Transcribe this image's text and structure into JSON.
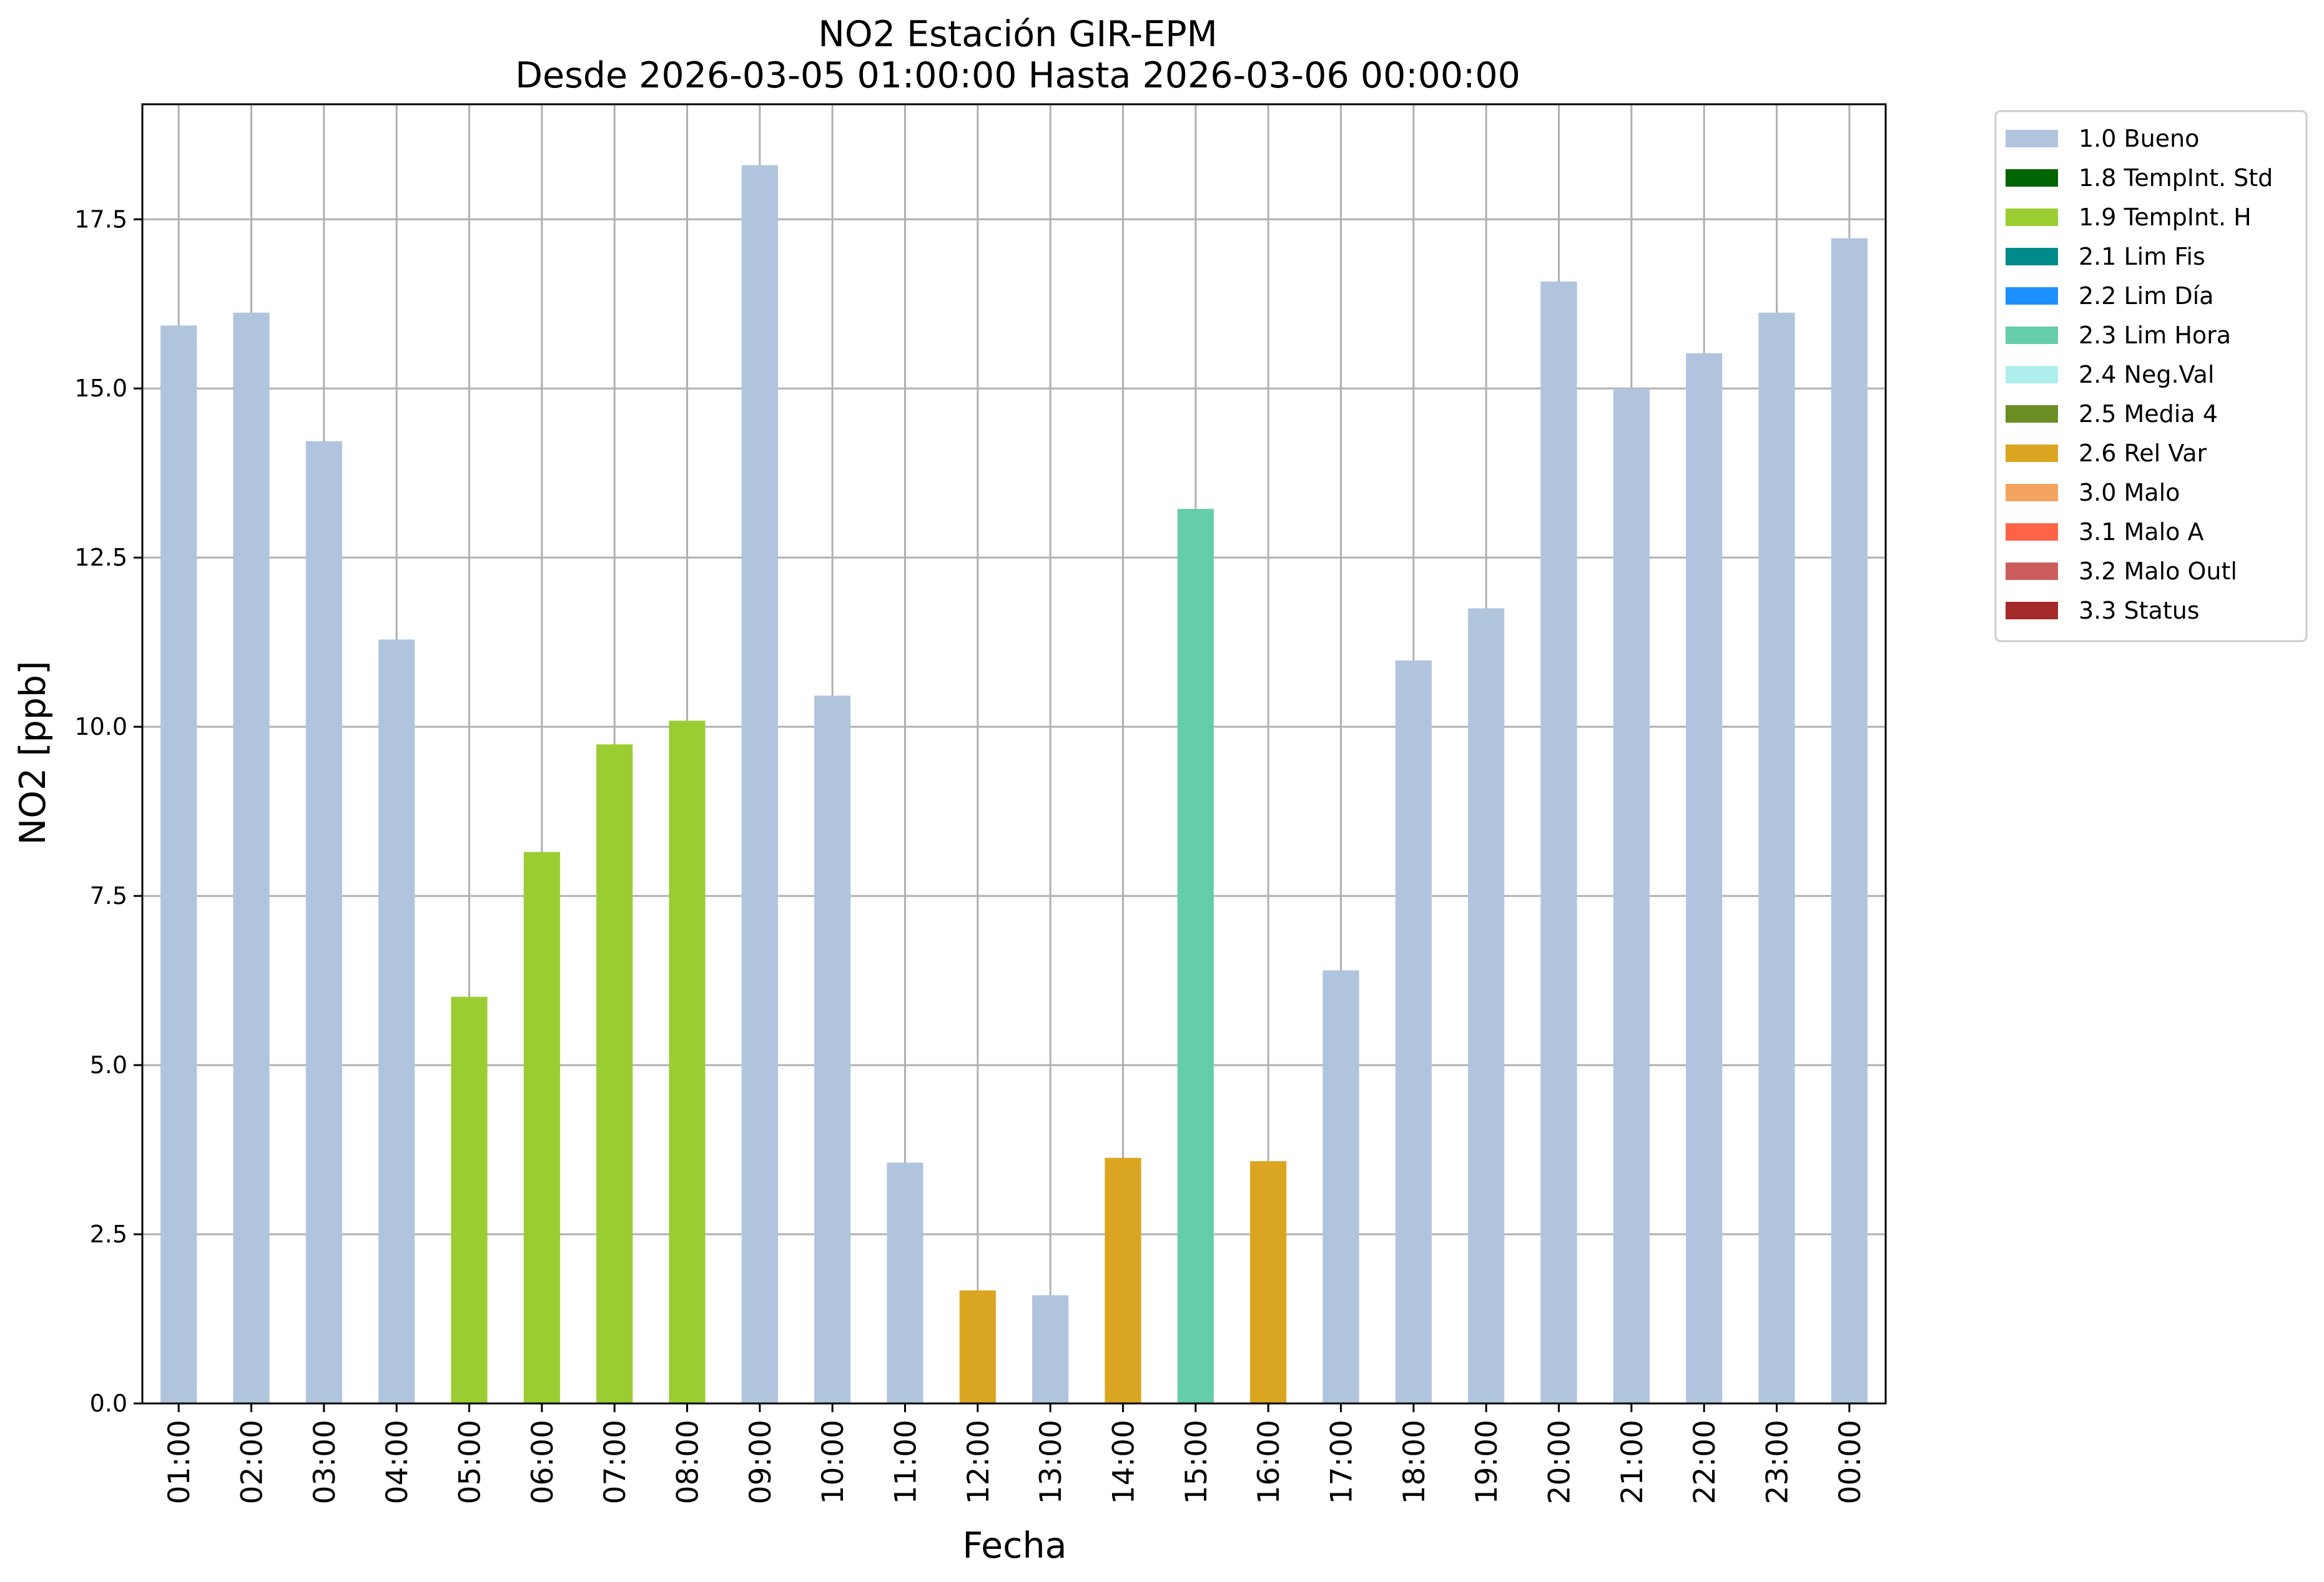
{
  "chart_data": {
    "type": "bar",
    "title": "NO2 Estación GIR-EPM",
    "subtitle": "Desde 2026-03-05 01:00:00 Hasta 2026-03-06 00:00:00",
    "xlabel": "Fecha",
    "ylabel": "NO2 [ppb]",
    "ylim": [
      0,
      19.2
    ],
    "yticks": [
      0,
      2.5,
      5,
      7.5,
      10,
      12.5,
      15,
      17.5
    ],
    "ytick_labels": [
      "0.0",
      "2.5",
      "5.0",
      "7.5",
      "10.0",
      "12.5",
      "15.0",
      "17.5"
    ],
    "grid": true,
    "legend_position": "outside-top-right",
    "categories": [
      "01:00",
      "02:00",
      "03:00",
      "04:00",
      "05:00",
      "06:00",
      "07:00",
      "08:00",
      "09:00",
      "10:00",
      "11:00",
      "12:00",
      "13:00",
      "14:00",
      "15:00",
      "16:00",
      "17:00",
      "18:00",
      "19:00",
      "20:00",
      "21:00",
      "22:00",
      "23:00",
      "00:00"
    ],
    "values": [
      15.93,
      16.12,
      14.22,
      11.29,
      6.01,
      8.15,
      9.74,
      10.09,
      18.3,
      10.46,
      3.56,
      1.67,
      1.6,
      3.63,
      13.22,
      3.58,
      6.4,
      10.98,
      11.75,
      16.58,
      15.0,
      15.52,
      16.12,
      17.22
    ],
    "bar_flags": [
      "1.0 Bueno",
      "1.0 Bueno",
      "1.0 Bueno",
      "1.0 Bueno",
      "1.9 TempInt. H",
      "1.9 TempInt. H",
      "1.9 TempInt. H",
      "1.9 TempInt. H",
      "1.0 Bueno",
      "1.0 Bueno",
      "1.0 Bueno",
      "2.6 Rel Var",
      "1.0 Bueno",
      "2.6 Rel Var",
      "2.3 Lim Hora",
      "2.6 Rel Var",
      "1.0 Bueno",
      "1.0 Bueno",
      "1.0 Bueno",
      "1.0 Bueno",
      "1.0 Bueno",
      "1.0 Bueno",
      "1.0 Bueno",
      "1.0 Bueno"
    ],
    "legend": [
      {
        "label": "1.0 Bueno",
        "color": "#b0c4de"
      },
      {
        "label": "1.8 TempInt. Std",
        "color": "#006400"
      },
      {
        "label": "1.9 TempInt. H",
        "color": "#9acd32"
      },
      {
        "label": "2.1 Lim Fis",
        "color": "#008b8b"
      },
      {
        "label": "2.2 Lim Día",
        "color": "#1e90ff"
      },
      {
        "label": "2.3 Lim Hora",
        "color": "#66cdaa"
      },
      {
        "label": "2.4 Neg.Val",
        "color": "#afeeee"
      },
      {
        "label": "2.5 Media 4",
        "color": "#6b8e23"
      },
      {
        "label": "2.6 Rel Var",
        "color": "#daa520"
      },
      {
        "label": "3.0 Malo",
        "color": "#f4a460"
      },
      {
        "label": "3.1 Malo A",
        "color": "#ff6347"
      },
      {
        "label": "3.2 Malo Outl",
        "color": "#cd5c5c"
      },
      {
        "label": "3.3 Status",
        "color": "#a52a2a"
      }
    ]
  }
}
